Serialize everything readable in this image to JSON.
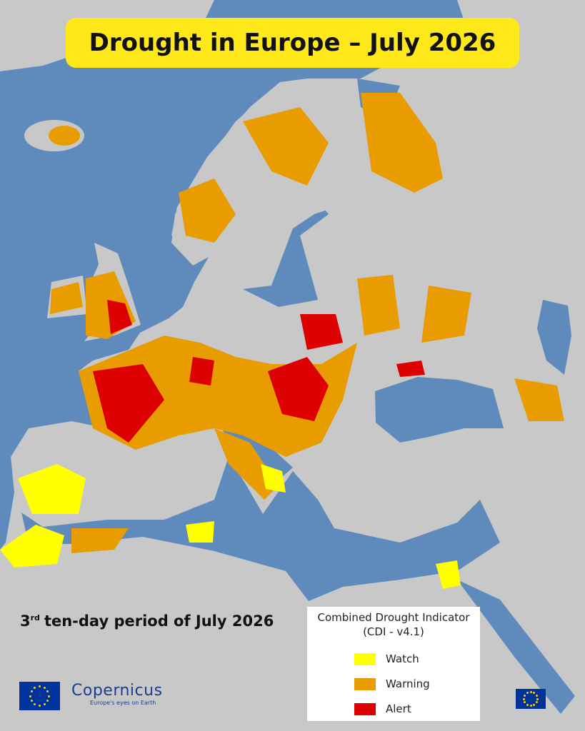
{
  "title": "Drought in Europe – July 2026",
  "period": {
    "ordinal": "3",
    "suffix": "rd",
    "text": "ten-day period of July 2026"
  },
  "legend": {
    "title": "Combined Drought Indicator",
    "subtitle": "(CDI - v4.1)",
    "items": [
      {
        "label": "Watch",
        "color": "#ffff00"
      },
      {
        "label": "Warning",
        "color": "#e89c00"
      },
      {
        "label": "Alert",
        "color": "#dd0000"
      }
    ]
  },
  "logo": {
    "name": "Copernicus",
    "tagline": "Europe's eyes on Earth"
  }
}
